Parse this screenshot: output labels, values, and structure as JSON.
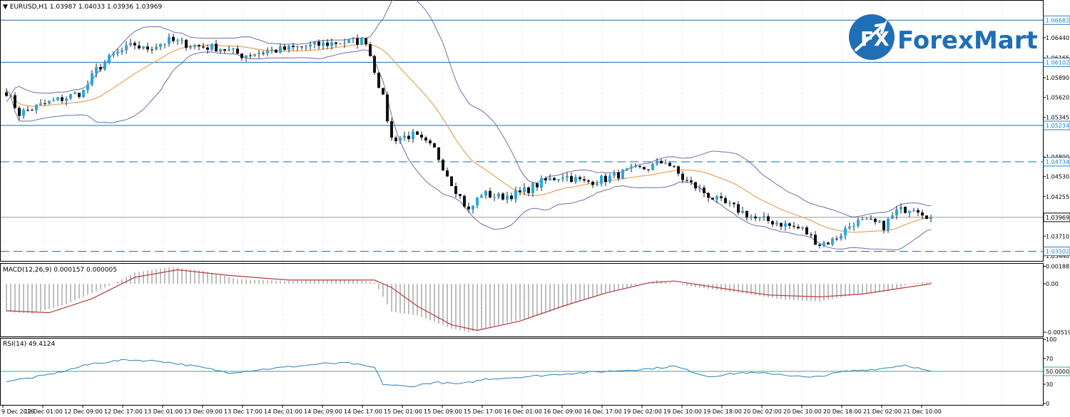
{
  "chart_data": {
    "type": "candlestick",
    "symbol_header": "▼ EURUSD,H1  1.03987 1.04033 1.03936 1.03969",
    "x_tick_labels": [
      "9 Dec 2016",
      "12 Dec 01:00",
      "12 Dec 09:00",
      "12 Dec 17:00",
      "13 Dec 01:00",
      "13 Dec 09:00",
      "13 Dec 17:00",
      "14 Dec 01:00",
      "14 Dec 09:00",
      "14 Dec 17:00",
      "15 Dec 01:00",
      "15 Dec 09:00",
      "15 Dec 17:00",
      "16 Dec 01:00",
      "16 Dec 09:00",
      "16 Dec 17:00",
      "19 Dec 02:00",
      "19 Dec 10:00",
      "19 Dec 18:00",
      "20 Dec 02:00",
      "20 Dec 10:00",
      "20 Dec 18:00",
      "21 Dec 02:00",
      "21 Dec 10:00"
    ],
    "price_axis": {
      "ylim": [
        1.0337,
        1.0695
      ],
      "tick_labels": [
        "1.06440",
        "1.06165",
        "1.05890",
        "1.05620",
        "1.05345",
        "1.04800",
        "1.04530",
        "1.04255",
        "1.03710",
        "1.03440"
      ],
      "tick_values": [
        1.0644,
        1.06165,
        1.0589,
        1.0562,
        1.05345,
        1.048,
        1.0453,
        1.04255,
        1.0371,
        1.0344
      ]
    },
    "horizontal_levels": [
      {
        "label": "1.06682",
        "value": 1.06682,
        "style": "solid"
      },
      {
        "label": "1.06102",
        "value": 1.06102,
        "style": "solid"
      },
      {
        "label": "1.05234",
        "value": 1.05234,
        "style": "solid"
      },
      {
        "label": "1.04734",
        "value": 1.04734,
        "style": "dashed"
      },
      {
        "label": "1.03502",
        "value": 1.03502,
        "style": "dashed"
      }
    ],
    "current_price": {
      "label": "1.03969",
      "value": 1.03969
    },
    "close_path": [
      [
        0,
        1.057
      ],
      [
        3,
        1.054
      ],
      [
        10,
        1.0555
      ],
      [
        13,
        1.056
      ],
      [
        18,
        1.057
      ],
      [
        21,
        1.06
      ],
      [
        25,
        1.062
      ],
      [
        30,
        1.0635
      ],
      [
        32,
        1.0628
      ],
      [
        38,
        1.064
      ],
      [
        45,
        1.0632
      ],
      [
        50,
        1.063
      ],
      [
        55,
        1.062
      ],
      [
        60,
        1.0625
      ],
      [
        65,
        1.0628
      ],
      [
        70,
        1.0632
      ],
      [
        78,
        1.0638
      ],
      [
        84,
        1.064
      ],
      [
        88,
        1.056
      ],
      [
        90,
        1.0505
      ],
      [
        95,
        1.051
      ],
      [
        100,
        1.049
      ],
      [
        104,
        1.0445
      ],
      [
        108,
        1.0405
      ],
      [
        111,
        1.043
      ],
      [
        115,
        1.0425
      ],
      [
        120,
        1.043
      ],
      [
        125,
        1.0445
      ],
      [
        130,
        1.0455
      ],
      [
        135,
        1.0445
      ],
      [
        140,
        1.045
      ],
      [
        145,
        1.046
      ],
      [
        150,
        1.0465
      ],
      [
        154,
        1.0475
      ],
      [
        158,
        1.045
      ],
      [
        162,
        1.0435
      ],
      [
        166,
        1.042
      ],
      [
        170,
        1.041
      ],
      [
        175,
        1.0395
      ],
      [
        180,
        1.039
      ],
      [
        186,
        1.038
      ],
      [
        190,
        1.036
      ],
      [
        193,
        1.0365
      ],
      [
        198,
        1.039
      ],
      [
        202,
        1.039
      ],
      [
        205,
        1.0385
      ],
      [
        208,
        1.0405
      ],
      [
        212,
        1.0412
      ],
      [
        216,
        1.0397
      ]
    ],
    "macd": {
      "label": "MACD(12,26,9) 0.000157 0.000005",
      "ylim": [
        -0.0055,
        0.002
      ],
      "tick_labels": [
        "0.001882",
        "0.00",
        "-0.005193"
      ],
      "tick_values": [
        0.001882,
        0.0,
        -0.005193
      ],
      "histogram_path": [
        [
          0,
          -0.003
        ],
        [
          6,
          -0.0032
        ],
        [
          14,
          -0.0022
        ],
        [
          24,
          -0.0002
        ],
        [
          30,
          0.0012
        ],
        [
          38,
          0.0018
        ],
        [
          46,
          0.0014
        ],
        [
          54,
          0.0005
        ],
        [
          66,
          0.0003
        ],
        [
          80,
          0.0004
        ],
        [
          86,
          0.0002
        ],
        [
          90,
          -0.003
        ],
        [
          96,
          -0.0034
        ],
        [
          104,
          -0.0048
        ],
        [
          108,
          -0.0052
        ],
        [
          116,
          -0.0043
        ],
        [
          126,
          -0.0032
        ],
        [
          136,
          -0.0015
        ],
        [
          144,
          -0.0005
        ],
        [
          152,
          0.0004
        ],
        [
          160,
          -0.0003
        ],
        [
          170,
          -0.0009
        ],
        [
          182,
          -0.0017
        ],
        [
          190,
          -0.0019
        ],
        [
          198,
          -0.0012
        ],
        [
          206,
          -0.0008
        ],
        [
          212,
          0.0001
        ],
        [
          216,
          0.0002
        ]
      ],
      "signal_path": [
        [
          0,
          -0.0029
        ],
        [
          10,
          -0.0031
        ],
        [
          20,
          -0.0016
        ],
        [
          30,
          0.0007
        ],
        [
          40,
          0.0015
        ],
        [
          52,
          0.0009
        ],
        [
          66,
          0.0004
        ],
        [
          86,
          0.0004
        ],
        [
          90,
          -0.0004
        ],
        [
          96,
          -0.0024
        ],
        [
          104,
          -0.0044
        ],
        [
          110,
          -0.005
        ],
        [
          120,
          -0.004
        ],
        [
          130,
          -0.0024
        ],
        [
          140,
          -0.001
        ],
        [
          150,
          0.0001
        ],
        [
          156,
          0.0003
        ],
        [
          166,
          -0.0004
        ],
        [
          178,
          -0.0012
        ],
        [
          190,
          -0.0014
        ],
        [
          200,
          -0.0011
        ],
        [
          210,
          -0.0004
        ],
        [
          216,
          0.0
        ]
      ]
    },
    "rsi": {
      "label": "RSI(14) 49.4124",
      "ylim": [
        0,
        100
      ],
      "tick_labels": [
        "100",
        "70",
        "50.0000",
        "30",
        "0"
      ],
      "tick_values": [
        100,
        70,
        50,
        30,
        0
      ],
      "level": 50,
      "level_label": "50.0000",
      "path": [
        [
          0,
          35
        ],
        [
          6,
          40
        ],
        [
          12,
          48
        ],
        [
          20,
          62
        ],
        [
          28,
          68
        ],
        [
          36,
          66
        ],
        [
          44,
          58
        ],
        [
          52,
          48
        ],
        [
          58,
          52
        ],
        [
          66,
          57
        ],
        [
          74,
          62
        ],
        [
          80,
          63
        ],
        [
          84,
          58
        ],
        [
          86,
          56
        ],
        [
          88,
          30
        ],
        [
          94,
          26
        ],
        [
          100,
          33
        ],
        [
          106,
          30
        ],
        [
          112,
          38
        ],
        [
          122,
          42
        ],
        [
          130,
          46
        ],
        [
          140,
          50
        ],
        [
          150,
          54
        ],
        [
          156,
          58
        ],
        [
          160,
          50
        ],
        [
          164,
          42
        ],
        [
          172,
          48
        ],
        [
          180,
          46
        ],
        [
          188,
          40
        ],
        [
          196,
          50
        ],
        [
          204,
          54
        ],
        [
          210,
          60
        ],
        [
          213,
          55
        ],
        [
          216,
          49
        ]
      ]
    }
  },
  "brand": {
    "name": "ForexMart",
    "badge_text": "FX",
    "color": "#1e6fb6"
  },
  "colors": {
    "bull": "#29a9e1",
    "bear": "#111111",
    "bollinger": "#6d6fa8",
    "ma": "#e3a45c",
    "macd_hist": "#bfbfbf",
    "macd_signal": "#b43a3a",
    "rsi": "#2d7fb8",
    "level_line": "#2a7fc2",
    "grid": "#c8c8c8"
  }
}
